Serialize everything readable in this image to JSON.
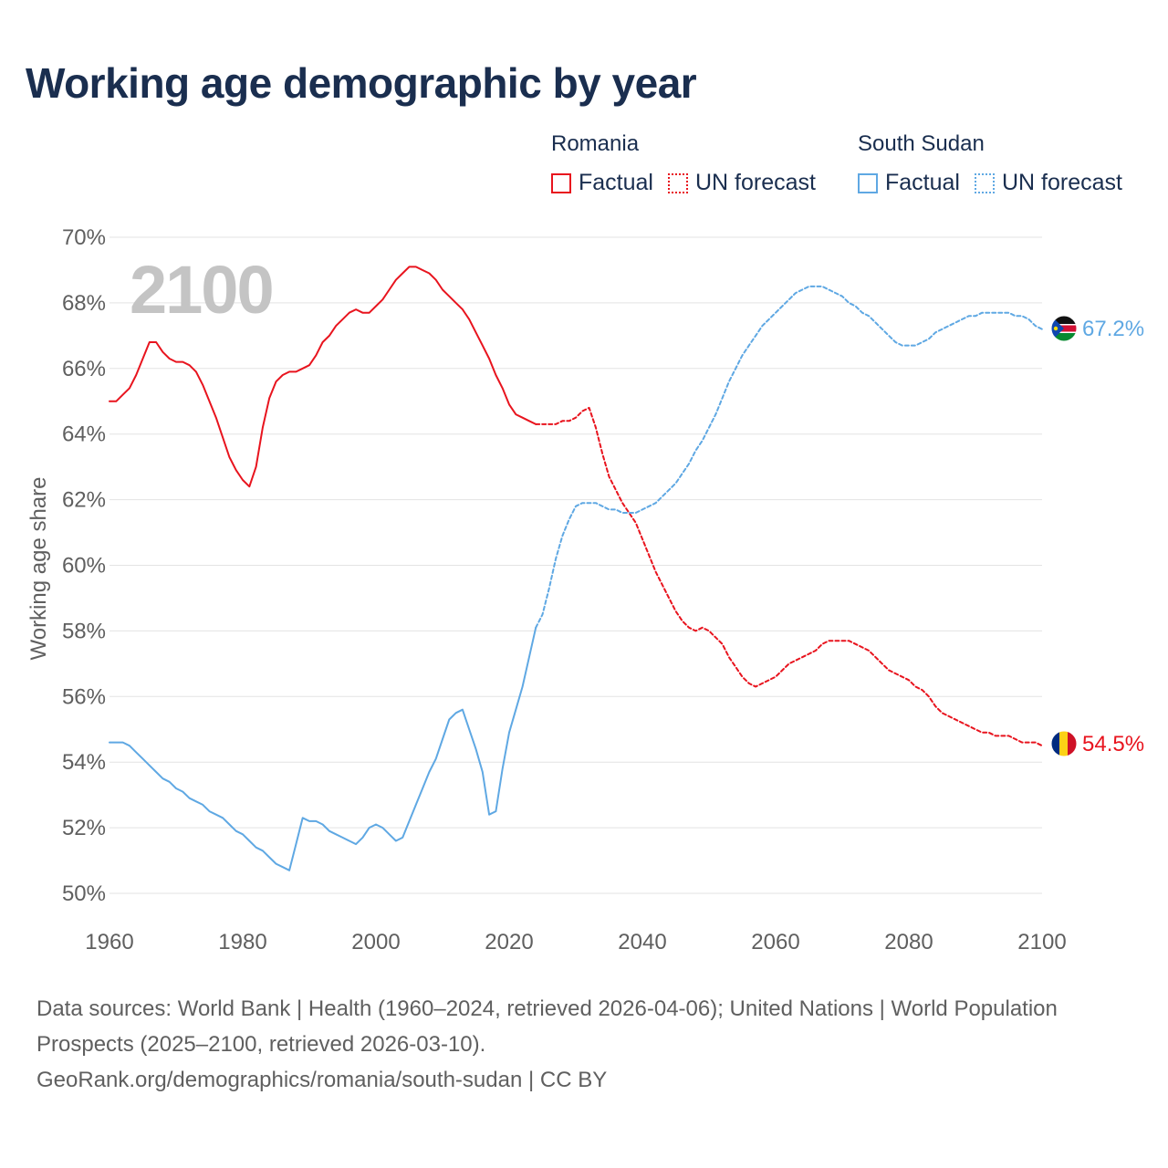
{
  "title": "Working age demographic by year",
  "legend": [
    {
      "country": "Romania",
      "factual_label": "Factual",
      "forecast_label": "UN forecast",
      "color": "#e8141e"
    },
    {
      "country": "South Sudan",
      "factual_label": "Factual",
      "forecast_label": "UN forecast",
      "color": "#5fa8e3"
    }
  ],
  "year_watermark": "2100",
  "footer": {
    "line1": "Data sources: World Bank | Health (1960–2024, retrieved 2026-04-06); United Nations | World Population Prospects (2025–2100, retrieved 2026-03-10).",
    "line2": "GeoRank.org/demographics/romania/south-sudan | CC BY"
  },
  "chart_data": {
    "type": "line",
    "title": "Working age demographic by year",
    "xlabel": "",
    "ylabel": "Working age share",
    "xlim": [
      1960,
      2100
    ],
    "ylim": [
      50,
      70
    ],
    "xticks": [
      1960,
      1980,
      2000,
      2020,
      2040,
      2060,
      2080,
      2100
    ],
    "yticks": [
      50,
      52,
      54,
      56,
      58,
      60,
      62,
      64,
      66,
      68,
      70
    ],
    "ytick_labels": [
      "50%",
      "52%",
      "54%",
      "56%",
      "58%",
      "60%",
      "62%",
      "64%",
      "66%",
      "68%",
      "70%"
    ],
    "grid": true,
    "series": [
      {
        "name": "Romania",
        "segment": "Factual",
        "color": "#e8141e",
        "dash": "solid",
        "points": [
          [
            1960,
            65.0
          ],
          [
            1961,
            65.0
          ],
          [
            1962,
            65.2
          ],
          [
            1963,
            65.4
          ],
          [
            1964,
            65.8
          ],
          [
            1965,
            66.3
          ],
          [
            1966,
            66.8
          ],
          [
            1967,
            66.8
          ],
          [
            1968,
            66.5
          ],
          [
            1969,
            66.3
          ],
          [
            1970,
            66.2
          ],
          [
            1971,
            66.2
          ],
          [
            1972,
            66.1
          ],
          [
            1973,
            65.9
          ],
          [
            1974,
            65.5
          ],
          [
            1975,
            65.0
          ],
          [
            1976,
            64.5
          ],
          [
            1977,
            63.9
          ],
          [
            1978,
            63.3
          ],
          [
            1979,
            62.9
          ],
          [
            1980,
            62.6
          ],
          [
            1981,
            62.4
          ],
          [
            1982,
            63.0
          ],
          [
            1983,
            64.2
          ],
          [
            1984,
            65.1
          ],
          [
            1985,
            65.6
          ],
          [
            1986,
            65.8
          ],
          [
            1987,
            65.9
          ],
          [
            1988,
            65.9
          ],
          [
            1989,
            66.0
          ],
          [
            1990,
            66.1
          ],
          [
            1991,
            66.4
          ],
          [
            1992,
            66.8
          ],
          [
            1993,
            67.0
          ],
          [
            1994,
            67.3
          ],
          [
            1995,
            67.5
          ],
          [
            1996,
            67.7
          ],
          [
            1997,
            67.8
          ],
          [
            1998,
            67.7
          ],
          [
            1999,
            67.7
          ],
          [
            2000,
            67.9
          ],
          [
            2001,
            68.1
          ],
          [
            2002,
            68.4
          ],
          [
            2003,
            68.7
          ],
          [
            2004,
            68.9
          ],
          [
            2005,
            69.1
          ],
          [
            2006,
            69.1
          ],
          [
            2007,
            69.0
          ],
          [
            2008,
            68.9
          ],
          [
            2009,
            68.7
          ],
          [
            2010,
            68.4
          ],
          [
            2011,
            68.2
          ],
          [
            2012,
            68.0
          ],
          [
            2013,
            67.8
          ],
          [
            2014,
            67.5
          ],
          [
            2015,
            67.1
          ],
          [
            2016,
            66.7
          ],
          [
            2017,
            66.3
          ],
          [
            2018,
            65.8
          ],
          [
            2019,
            65.4
          ],
          [
            2020,
            64.9
          ],
          [
            2021,
            64.6
          ],
          [
            2022,
            64.5
          ],
          [
            2023,
            64.4
          ],
          [
            2024,
            64.3
          ]
        ]
      },
      {
        "name": "Romania",
        "segment": "UN forecast",
        "color": "#e8141e",
        "dash": "dotted",
        "points": [
          [
            2024,
            64.3
          ],
          [
            2025,
            64.3
          ],
          [
            2026,
            64.3
          ],
          [
            2027,
            64.3
          ],
          [
            2028,
            64.4
          ],
          [
            2029,
            64.4
          ],
          [
            2030,
            64.5
          ],
          [
            2031,
            64.7
          ],
          [
            2032,
            64.8
          ],
          [
            2033,
            64.2
          ],
          [
            2034,
            63.4
          ],
          [
            2035,
            62.7
          ],
          [
            2036,
            62.3
          ],
          [
            2037,
            61.9
          ],
          [
            2038,
            61.6
          ],
          [
            2039,
            61.3
          ],
          [
            2040,
            60.8
          ],
          [
            2041,
            60.3
          ],
          [
            2042,
            59.8
          ],
          [
            2043,
            59.4
          ],
          [
            2044,
            59.0
          ],
          [
            2045,
            58.6
          ],
          [
            2046,
            58.3
          ],
          [
            2047,
            58.1
          ],
          [
            2048,
            58.0
          ],
          [
            2049,
            58.1
          ],
          [
            2050,
            58.0
          ],
          [
            2051,
            57.8
          ],
          [
            2052,
            57.6
          ],
          [
            2053,
            57.2
          ],
          [
            2054,
            56.9
          ],
          [
            2055,
            56.6
          ],
          [
            2056,
            56.4
          ],
          [
            2057,
            56.3
          ],
          [
            2058,
            56.4
          ],
          [
            2059,
            56.5
          ],
          [
            2060,
            56.6
          ],
          [
            2061,
            56.8
          ],
          [
            2062,
            57.0
          ],
          [
            2063,
            57.1
          ],
          [
            2064,
            57.2
          ],
          [
            2065,
            57.3
          ],
          [
            2066,
            57.4
          ],
          [
            2067,
            57.6
          ],
          [
            2068,
            57.7
          ],
          [
            2069,
            57.7
          ],
          [
            2070,
            57.7
          ],
          [
            2071,
            57.7
          ],
          [
            2072,
            57.6
          ],
          [
            2073,
            57.5
          ],
          [
            2074,
            57.4
          ],
          [
            2075,
            57.2
          ],
          [
            2076,
            57.0
          ],
          [
            2077,
            56.8
          ],
          [
            2078,
            56.7
          ],
          [
            2079,
            56.6
          ],
          [
            2080,
            56.5
          ],
          [
            2081,
            56.3
          ],
          [
            2082,
            56.2
          ],
          [
            2083,
            56.0
          ],
          [
            2084,
            55.7
          ],
          [
            2085,
            55.5
          ],
          [
            2086,
            55.4
          ],
          [
            2087,
            55.3
          ],
          [
            2088,
            55.2
          ],
          [
            2089,
            55.1
          ],
          [
            2090,
            55.0
          ],
          [
            2091,
            54.9
          ],
          [
            2092,
            54.9
          ],
          [
            2093,
            54.8
          ],
          [
            2094,
            54.8
          ],
          [
            2095,
            54.8
          ],
          [
            2096,
            54.7
          ],
          [
            2097,
            54.6
          ],
          [
            2098,
            54.6
          ],
          [
            2099,
            54.6
          ],
          [
            2100,
            54.5
          ]
        ]
      },
      {
        "name": "South Sudan",
        "segment": "Factual",
        "color": "#5fa8e3",
        "dash": "solid",
        "points": [
          [
            1960,
            54.6
          ],
          [
            1961,
            54.6
          ],
          [
            1962,
            54.6
          ],
          [
            1963,
            54.5
          ],
          [
            1964,
            54.3
          ],
          [
            1965,
            54.1
          ],
          [
            1966,
            53.9
          ],
          [
            1967,
            53.7
          ],
          [
            1968,
            53.5
          ],
          [
            1969,
            53.4
          ],
          [
            1970,
            53.2
          ],
          [
            1971,
            53.1
          ],
          [
            1972,
            52.9
          ],
          [
            1973,
            52.8
          ],
          [
            1974,
            52.7
          ],
          [
            1975,
            52.5
          ],
          [
            1976,
            52.4
          ],
          [
            1977,
            52.3
          ],
          [
            1978,
            52.1
          ],
          [
            1979,
            51.9
          ],
          [
            1980,
            51.8
          ],
          [
            1981,
            51.6
          ],
          [
            1982,
            51.4
          ],
          [
            1983,
            51.3
          ],
          [
            1984,
            51.1
          ],
          [
            1985,
            50.9
          ],
          [
            1986,
            50.8
          ],
          [
            1987,
            50.7
          ],
          [
            1988,
            51.5
          ],
          [
            1989,
            52.3
          ],
          [
            1990,
            52.2
          ],
          [
            1991,
            52.2
          ],
          [
            1992,
            52.1
          ],
          [
            1993,
            51.9
          ],
          [
            1994,
            51.8
          ],
          [
            1995,
            51.7
          ],
          [
            1996,
            51.6
          ],
          [
            1997,
            51.5
          ],
          [
            1998,
            51.7
          ],
          [
            1999,
            52.0
          ],
          [
            2000,
            52.1
          ],
          [
            2001,
            52.0
          ],
          [
            2002,
            51.8
          ],
          [
            2003,
            51.6
          ],
          [
            2004,
            51.7
          ],
          [
            2005,
            52.2
          ],
          [
            2006,
            52.7
          ],
          [
            2007,
            53.2
          ],
          [
            2008,
            53.7
          ],
          [
            2009,
            54.1
          ],
          [
            2010,
            54.7
          ],
          [
            2011,
            55.3
          ],
          [
            2012,
            55.5
          ],
          [
            2013,
            55.6
          ],
          [
            2014,
            55.0
          ],
          [
            2015,
            54.4
          ],
          [
            2016,
            53.7
          ],
          [
            2017,
            52.4
          ],
          [
            2018,
            52.5
          ],
          [
            2019,
            53.8
          ],
          [
            2020,
            54.9
          ],
          [
            2021,
            55.6
          ],
          [
            2022,
            56.3
          ],
          [
            2023,
            57.2
          ],
          [
            2024,
            58.1
          ]
        ]
      },
      {
        "name": "South Sudan",
        "segment": "UN forecast",
        "color": "#5fa8e3",
        "dash": "dotted",
        "points": [
          [
            2024,
            58.1
          ],
          [
            2025,
            58.5
          ],
          [
            2026,
            59.3
          ],
          [
            2027,
            60.2
          ],
          [
            2028,
            60.9
          ],
          [
            2029,
            61.4
          ],
          [
            2030,
            61.8
          ],
          [
            2031,
            61.9
          ],
          [
            2032,
            61.9
          ],
          [
            2033,
            61.9
          ],
          [
            2034,
            61.8
          ],
          [
            2035,
            61.7
          ],
          [
            2036,
            61.7
          ],
          [
            2037,
            61.6
          ],
          [
            2038,
            61.6
          ],
          [
            2039,
            61.6
          ],
          [
            2040,
            61.7
          ],
          [
            2041,
            61.8
          ],
          [
            2042,
            61.9
          ],
          [
            2043,
            62.1
          ],
          [
            2044,
            62.3
          ],
          [
            2045,
            62.5
          ],
          [
            2046,
            62.8
          ],
          [
            2047,
            63.1
          ],
          [
            2048,
            63.5
          ],
          [
            2049,
            63.8
          ],
          [
            2050,
            64.2
          ],
          [
            2051,
            64.6
          ],
          [
            2052,
            65.1
          ],
          [
            2053,
            65.6
          ],
          [
            2054,
            66.0
          ],
          [
            2055,
            66.4
          ],
          [
            2056,
            66.7
          ],
          [
            2057,
            67.0
          ],
          [
            2058,
            67.3
          ],
          [
            2059,
            67.5
          ],
          [
            2060,
            67.7
          ],
          [
            2061,
            67.9
          ],
          [
            2062,
            68.1
          ],
          [
            2063,
            68.3
          ],
          [
            2064,
            68.4
          ],
          [
            2065,
            68.5
          ],
          [
            2066,
            68.5
          ],
          [
            2067,
            68.5
          ],
          [
            2068,
            68.4
          ],
          [
            2069,
            68.3
          ],
          [
            2070,
            68.2
          ],
          [
            2071,
            68.0
          ],
          [
            2072,
            67.9
          ],
          [
            2073,
            67.7
          ],
          [
            2074,
            67.6
          ],
          [
            2075,
            67.4
          ],
          [
            2076,
            67.2
          ],
          [
            2077,
            67.0
          ],
          [
            2078,
            66.8
          ],
          [
            2079,
            66.7
          ],
          [
            2080,
            66.7
          ],
          [
            2081,
            66.7
          ],
          [
            2082,
            66.8
          ],
          [
            2083,
            66.9
          ],
          [
            2084,
            67.1
          ],
          [
            2085,
            67.2
          ],
          [
            2086,
            67.3
          ],
          [
            2087,
            67.4
          ],
          [
            2088,
            67.5
          ],
          [
            2089,
            67.6
          ],
          [
            2090,
            67.6
          ],
          [
            2091,
            67.7
          ],
          [
            2092,
            67.7
          ],
          [
            2093,
            67.7
          ],
          [
            2094,
            67.7
          ],
          [
            2095,
            67.7
          ],
          [
            2096,
            67.6
          ],
          [
            2097,
            67.6
          ],
          [
            2098,
            67.5
          ],
          [
            2099,
            67.3
          ],
          [
            2100,
            67.2
          ]
        ]
      }
    ],
    "end_labels": [
      {
        "country": "South Sudan",
        "label": "67.2%",
        "value": 67.2,
        "color": "#5fa8e3",
        "flag": "south-sudan-flag"
      },
      {
        "country": "Romania",
        "label": "54.5%",
        "value": 54.5,
        "color": "#e8141e",
        "flag": "romania-flag"
      }
    ]
  }
}
